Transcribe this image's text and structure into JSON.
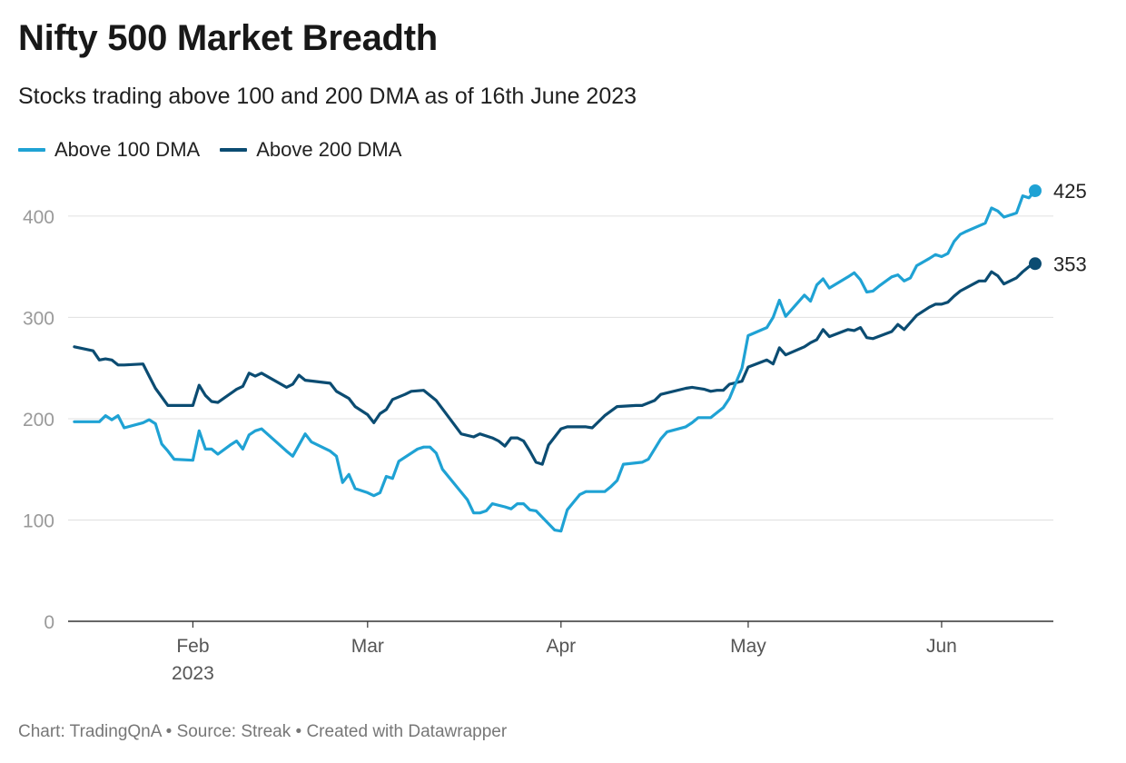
{
  "title": "Nifty 500 Market Breadth",
  "subtitle": "Stocks trading above 100 and 200 DMA as of 16th June 2023",
  "footer": "Chart: TradingQnA • Source: Streak • Created with Datawrapper",
  "chart_data": {
    "type": "line",
    "title": "Nifty 500 Market Breadth",
    "subtitle": "Stocks trading above 100 and 200 DMA as of 16th June 2023",
    "xlabel": "",
    "ylabel": "",
    "ylim": [
      0,
      425
    ],
    "yticks": [
      0,
      100,
      200,
      300,
      400
    ],
    "xlim": [
      "2023-01-12",
      "2023-06-16"
    ],
    "xticks": [
      {
        "date": "2023-02-01",
        "label": "Feb",
        "sublabel": "2023"
      },
      {
        "date": "2023-03-01",
        "label": "Mar"
      },
      {
        "date": "2023-04-01",
        "label": "Apr"
      },
      {
        "date": "2023-05-01",
        "label": "May"
      },
      {
        "date": "2023-06-01",
        "label": "Jun"
      }
    ],
    "grid": true,
    "legend_position": "top-left",
    "series": [
      {
        "name": "Above 100 DMA",
        "color": "#1fa2d4",
        "end_label": "425",
        "points": [
          [
            "2023-01-13",
            197
          ],
          [
            "2023-01-16",
            197
          ],
          [
            "2023-01-17",
            197
          ],
          [
            "2023-01-18",
            203
          ],
          [
            "2023-01-19",
            199
          ],
          [
            "2023-01-20",
            203
          ],
          [
            "2023-01-21",
            191
          ],
          [
            "2023-01-24",
            196
          ],
          [
            "2023-01-25",
            199
          ],
          [
            "2023-01-26",
            195
          ],
          [
            "2023-01-27",
            175
          ],
          [
            "2023-01-28",
            168
          ],
          [
            "2023-01-29",
            160
          ],
          [
            "2023-02-01",
            159
          ],
          [
            "2023-02-02",
            188
          ],
          [
            "2023-02-03",
            170
          ],
          [
            "2023-02-04",
            170
          ],
          [
            "2023-02-05",
            165
          ],
          [
            "2023-02-07",
            174
          ],
          [
            "2023-02-08",
            178
          ],
          [
            "2023-02-09",
            170
          ],
          [
            "2023-02-10",
            184
          ],
          [
            "2023-02-11",
            188
          ],
          [
            "2023-02-12",
            190
          ],
          [
            "2023-02-16",
            168
          ],
          [
            "2023-02-17",
            163
          ],
          [
            "2023-02-19",
            185
          ],
          [
            "2023-02-20",
            177
          ],
          [
            "2023-02-23",
            168
          ],
          [
            "2023-02-24",
            163
          ],
          [
            "2023-02-25",
            137
          ],
          [
            "2023-02-26",
            145
          ],
          [
            "2023-02-27",
            131
          ],
          [
            "2023-03-01",
            127
          ],
          [
            "2023-03-02",
            124
          ],
          [
            "2023-03-03",
            127
          ],
          [
            "2023-03-04",
            143
          ],
          [
            "2023-03-05",
            141
          ],
          [
            "2023-03-06",
            158
          ],
          [
            "2023-03-09",
            170
          ],
          [
            "2023-03-10",
            172
          ],
          [
            "2023-03-11",
            172
          ],
          [
            "2023-03-12",
            166
          ],
          [
            "2023-03-13",
            150
          ],
          [
            "2023-03-17",
            120
          ],
          [
            "2023-03-18",
            107
          ],
          [
            "2023-03-19",
            107
          ],
          [
            "2023-03-20",
            109
          ],
          [
            "2023-03-21",
            116
          ],
          [
            "2023-03-23",
            113
          ],
          [
            "2023-03-24",
            111
          ],
          [
            "2023-03-25",
            116
          ],
          [
            "2023-03-26",
            116
          ],
          [
            "2023-03-27",
            110
          ],
          [
            "2023-03-28",
            109
          ],
          [
            "2023-03-31",
            90
          ],
          [
            "2023-04-01",
            89
          ],
          [
            "2023-04-02",
            110
          ],
          [
            "2023-04-04",
            125
          ],
          [
            "2023-04-05",
            128
          ],
          [
            "2023-04-08",
            128
          ],
          [
            "2023-04-09",
            133
          ],
          [
            "2023-04-10",
            139
          ],
          [
            "2023-04-11",
            155
          ],
          [
            "2023-04-14",
            157
          ],
          [
            "2023-04-15",
            160
          ],
          [
            "2023-04-17",
            180
          ],
          [
            "2023-04-18",
            187
          ],
          [
            "2023-04-21",
            192
          ],
          [
            "2023-04-22",
            196
          ],
          [
            "2023-04-23",
            201
          ],
          [
            "2023-04-25",
            201
          ],
          [
            "2023-04-26",
            206
          ],
          [
            "2023-04-27",
            211
          ],
          [
            "2023-04-28",
            220
          ],
          [
            "2023-04-30",
            250
          ],
          [
            "2023-05-01",
            282
          ],
          [
            "2023-05-04",
            290
          ],
          [
            "2023-05-05",
            300
          ],
          [
            "2023-05-06",
            317
          ],
          [
            "2023-05-07",
            301
          ],
          [
            "2023-05-10",
            322
          ],
          [
            "2023-05-11",
            316
          ],
          [
            "2023-05-12",
            332
          ],
          [
            "2023-05-13",
            338
          ],
          [
            "2023-05-14",
            329
          ],
          [
            "2023-05-17",
            340
          ],
          [
            "2023-05-18",
            344
          ],
          [
            "2023-05-19",
            337
          ],
          [
            "2023-05-20",
            325
          ],
          [
            "2023-05-21",
            326
          ],
          [
            "2023-05-22",
            331
          ],
          [
            "2023-05-24",
            340
          ],
          [
            "2023-05-25",
            342
          ],
          [
            "2023-05-26",
            336
          ],
          [
            "2023-05-27",
            339
          ],
          [
            "2023-05-28",
            351
          ],
          [
            "2023-05-30",
            358
          ],
          [
            "2023-05-31",
            362
          ],
          [
            "2023-06-01",
            360
          ],
          [
            "2023-06-02",
            363
          ],
          [
            "2023-06-03",
            375
          ],
          [
            "2023-06-04",
            382
          ],
          [
            "2023-06-05",
            385
          ],
          [
            "2023-06-08",
            393
          ],
          [
            "2023-06-09",
            408
          ],
          [
            "2023-06-10",
            405
          ],
          [
            "2023-06-11",
            399
          ],
          [
            "2023-06-13",
            403
          ],
          [
            "2023-06-14",
            420
          ],
          [
            "2023-06-15",
            418
          ],
          [
            "2023-06-16",
            425
          ]
        ]
      },
      {
        "name": "Above 200 DMA",
        "color": "#0b4c72",
        "end_label": "353",
        "points": [
          [
            "2023-01-13",
            271
          ],
          [
            "2023-01-16",
            267
          ],
          [
            "2023-01-17",
            258
          ],
          [
            "2023-01-18",
            259
          ],
          [
            "2023-01-19",
            258
          ],
          [
            "2023-01-20",
            253
          ],
          [
            "2023-01-21",
            253
          ],
          [
            "2023-01-24",
            254
          ],
          [
            "2023-01-25",
            242
          ],
          [
            "2023-01-26",
            230
          ],
          [
            "2023-01-28",
            213
          ],
          [
            "2023-01-29",
            213
          ],
          [
            "2023-02-01",
            213
          ],
          [
            "2023-02-02",
            233
          ],
          [
            "2023-02-03",
            223
          ],
          [
            "2023-02-04",
            217
          ],
          [
            "2023-02-05",
            216
          ],
          [
            "2023-02-08",
            229
          ],
          [
            "2023-02-09",
            232
          ],
          [
            "2023-02-10",
            245
          ],
          [
            "2023-02-11",
            242
          ],
          [
            "2023-02-12",
            245
          ],
          [
            "2023-02-16",
            231
          ],
          [
            "2023-02-17",
            234
          ],
          [
            "2023-02-18",
            243
          ],
          [
            "2023-02-19",
            238
          ],
          [
            "2023-02-23",
            235
          ],
          [
            "2023-02-24",
            227
          ],
          [
            "2023-02-26",
            220
          ],
          [
            "2023-02-27",
            212
          ],
          [
            "2023-03-01",
            204
          ],
          [
            "2023-03-02",
            196
          ],
          [
            "2023-03-03",
            205
          ],
          [
            "2023-03-04",
            209
          ],
          [
            "2023-03-05",
            219
          ],
          [
            "2023-03-07",
            224
          ],
          [
            "2023-03-08",
            227
          ],
          [
            "2023-03-10",
            228
          ],
          [
            "2023-03-12",
            218
          ],
          [
            "2023-03-16",
            185
          ],
          [
            "2023-03-18",
            182
          ],
          [
            "2023-03-19",
            185
          ],
          [
            "2023-03-21",
            181
          ],
          [
            "2023-03-22",
            178
          ],
          [
            "2023-03-23",
            173
          ],
          [
            "2023-03-24",
            181
          ],
          [
            "2023-03-25",
            181
          ],
          [
            "2023-03-26",
            178
          ],
          [
            "2023-03-27",
            168
          ],
          [
            "2023-03-28",
            157
          ],
          [
            "2023-03-29",
            155
          ],
          [
            "2023-03-30",
            174
          ],
          [
            "2023-04-01",
            190
          ],
          [
            "2023-04-02",
            192
          ],
          [
            "2023-04-05",
            192
          ],
          [
            "2023-04-06",
            191
          ],
          [
            "2023-04-08",
            203
          ],
          [
            "2023-04-10",
            212
          ],
          [
            "2023-04-13",
            213
          ],
          [
            "2023-04-14",
            213
          ],
          [
            "2023-04-16",
            218
          ],
          [
            "2023-04-17",
            224
          ],
          [
            "2023-04-21",
            230
          ],
          [
            "2023-04-22",
            231
          ],
          [
            "2023-04-24",
            229
          ],
          [
            "2023-04-25",
            227
          ],
          [
            "2023-04-26",
            228
          ],
          [
            "2023-04-27",
            228
          ],
          [
            "2023-04-28",
            234
          ],
          [
            "2023-04-30",
            237
          ],
          [
            "2023-05-01",
            251
          ],
          [
            "2023-05-04",
            258
          ],
          [
            "2023-05-05",
            254
          ],
          [
            "2023-05-06",
            270
          ],
          [
            "2023-05-07",
            263
          ],
          [
            "2023-05-10",
            271
          ],
          [
            "2023-05-11",
            275
          ],
          [
            "2023-05-12",
            278
          ],
          [
            "2023-05-13",
            288
          ],
          [
            "2023-05-14",
            281
          ],
          [
            "2023-05-17",
            288
          ],
          [
            "2023-05-18",
            287
          ],
          [
            "2023-05-19",
            290
          ],
          [
            "2023-05-20",
            280
          ],
          [
            "2023-05-21",
            279
          ],
          [
            "2023-05-24",
            286
          ],
          [
            "2023-05-25",
            293
          ],
          [
            "2023-05-26",
            288
          ],
          [
            "2023-05-27",
            295
          ],
          [
            "2023-05-28",
            302
          ],
          [
            "2023-05-30",
            310
          ],
          [
            "2023-05-31",
            313
          ],
          [
            "2023-06-01",
            313
          ],
          [
            "2023-06-02",
            315
          ],
          [
            "2023-06-03",
            321
          ],
          [
            "2023-06-04",
            326
          ],
          [
            "2023-06-07",
            336
          ],
          [
            "2023-06-08",
            336
          ],
          [
            "2023-06-09",
            345
          ],
          [
            "2023-06-10",
            341
          ],
          [
            "2023-06-11",
            333
          ],
          [
            "2023-06-13",
            339
          ],
          [
            "2023-06-14",
            345
          ],
          [
            "2023-06-15",
            350
          ],
          [
            "2023-06-16",
            353
          ]
        ]
      }
    ]
  }
}
